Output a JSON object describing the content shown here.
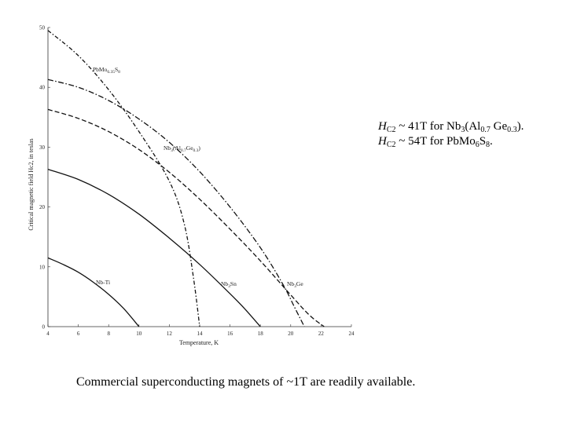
{
  "chart_data": {
    "type": "line",
    "xlabel": "Temperature, K",
    "ylabel": "Critical magnetic field Hc2, in teslas",
    "xlim": [
      4,
      24
    ],
    "ylim": [
      0,
      50
    ],
    "xticks": [
      4,
      6,
      8,
      10,
      12,
      14,
      16,
      18,
      20,
      22,
      24
    ],
    "yticks": [
      0,
      10,
      20,
      30,
      40,
      50
    ],
    "series": [
      {
        "name": "Nb-Ti",
        "label_parts": [
          "Nb-Ti"
        ],
        "dash": "solid",
        "points": [
          [
            4,
            11.5
          ],
          [
            5,
            10.4
          ],
          [
            6,
            9.1
          ],
          [
            7,
            7.4
          ],
          [
            8,
            5.4
          ],
          [
            9,
            3.0
          ],
          [
            10,
            0
          ]
        ]
      },
      {
        "name": "Nb3Sn",
        "label_parts": [
          "Nb",
          "3",
          "Sn"
        ],
        "dash": "solid",
        "points": [
          [
            4,
            26.3
          ],
          [
            6,
            24.6
          ],
          [
            8,
            22.1
          ],
          [
            10,
            18.8
          ],
          [
            12,
            14.8
          ],
          [
            14,
            10.4
          ],
          [
            16,
            5.5
          ],
          [
            17,
            2.9
          ],
          [
            18,
            0
          ]
        ]
      },
      {
        "name": "Nb3Ge",
        "label_parts": [
          "Nb",
          "3",
          "Ge"
        ],
        "dash": "dashed",
        "points": [
          [
            4,
            36.3
          ],
          [
            6,
            34.8
          ],
          [
            8,
            32.6
          ],
          [
            10,
            29.6
          ],
          [
            12,
            25.8
          ],
          [
            14,
            21.3
          ],
          [
            16,
            16.3
          ],
          [
            18,
            11.0
          ],
          [
            20,
            5.3
          ],
          [
            21.2,
            2.0
          ],
          [
            22.2,
            0
          ]
        ]
      },
      {
        "name": "Nb3(Al0.7Ge0.3)",
        "label_parts": [
          "Nb",
          "3",
          "(Al",
          "0.7",
          "Ge",
          "0.3",
          ")"
        ],
        "dash": "dashdot",
        "points": [
          [
            4,
            41.3
          ],
          [
            6,
            40.0
          ],
          [
            8,
            37.8
          ],
          [
            10,
            34.7
          ],
          [
            12,
            30.8
          ],
          [
            14,
            25.9
          ],
          [
            16,
            20.0
          ],
          [
            18,
            13.2
          ],
          [
            19.5,
            7.0
          ],
          [
            20.3,
            3.0
          ],
          [
            20.9,
            0
          ]
        ]
      },
      {
        "name": "PbMo6.35S8",
        "label_parts": [
          "PbMo",
          "6.35",
          "S",
          "8"
        ],
        "dash": "dashdot2",
        "points": [
          [
            4,
            49.5
          ],
          [
            6,
            45.3
          ],
          [
            8,
            39.6
          ],
          [
            10,
            32.6
          ],
          [
            12,
            24.3
          ],
          [
            13,
            17.0
          ],
          [
            13.6,
            8.0
          ],
          [
            14,
            0
          ]
        ]
      }
    ]
  },
  "notes": {
    "line1": {
      "h": "H",
      "sub1": "C2",
      "mid": " ~ 41T for Nb",
      "s3": "3",
      "p1": "(Al",
      "s07": "0.7",
      "p2": " Ge",
      "s03": "0.3",
      "end": ")."
    },
    "line2": {
      "h": "H",
      "sub1": "C2",
      "mid": " ~ 54T for PbMo",
      "s6": "6",
      "p1": "S",
      "s8": "8",
      "end": "."
    }
  },
  "caption": "Commercial superconducting magnets of ~1T are readily available."
}
